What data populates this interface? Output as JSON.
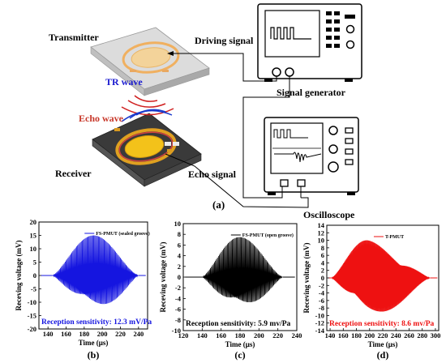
{
  "labels": {
    "transmitter": "Transmitter",
    "driving_signal": "Driving signal",
    "tr_wave": "TR wave",
    "echo_wave": "Echo wave",
    "signal_generator": "Signal generator",
    "receiver": "Receiver",
    "echo_signal": "Echo signal",
    "oscilloscope": "Oscilloscope",
    "panel_a": "(a)"
  },
  "colors": {
    "tr_wave": "#1a1ad0",
    "echo_wave": "#c8382a",
    "wave_red": "#d02020",
    "wave_blue": "#1a3acc",
    "plot_b": "#1515e0",
    "plot_c": "#000000",
    "plot_d": "#ee1111"
  },
  "chart_data": [
    {
      "type": "line",
      "panel": "(b)",
      "series": [
        {
          "name": "FS-PMUT (sealed groove)",
          "color": "#1515e0"
        }
      ],
      "xlabel": "Time (μs)",
      "ylabel": "Receving voltage (mV)",
      "xlim": [
        130,
        250
      ],
      "ylim": [
        -20,
        20
      ],
      "xticks": [
        140,
        160,
        180,
        200,
        220,
        240
      ],
      "yticks": [
        -20,
        -15,
        -10,
        -5,
        0,
        5,
        10,
        15,
        20
      ],
      "envelope": {
        "start": 145,
        "peak": 192,
        "end": 240,
        "amplitude": 15.2
      },
      "annotation": "Reception sensitivity: 12.3 mV/Pa"
    },
    {
      "type": "line",
      "panel": "(c)",
      "series": [
        {
          "name": "FS-PMUT (open groove)",
          "color": "#000000"
        }
      ],
      "xlabel": "Time (μs)",
      "ylabel": "Receving voltage (mV)",
      "xlim": [
        120,
        240
      ],
      "ylim": [
        -10,
        10
      ],
      "xticks": [
        120,
        140,
        160,
        180,
        200,
        220,
        240
      ],
      "yticks": [
        -10,
        -8,
        -6,
        -4,
        -2,
        0,
        2,
        4,
        6,
        8,
        10
      ],
      "envelope": {
        "start": 140,
        "peak": 180,
        "end": 225,
        "amplitude": 7.5
      },
      "annotation": "Reception sensitivity: 5.9 mv/Pa"
    },
    {
      "type": "line",
      "panel": "(d)",
      "series": [
        {
          "name": "T-PMUT",
          "color": "#ee1111"
        }
      ],
      "xlabel": "Time (μs)",
      "ylabel": "Receving voltage (mV)",
      "xlim": [
        135,
        305
      ],
      "ylim": [
        -14,
        14
      ],
      "xticks": [
        140,
        160,
        180,
        200,
        220,
        240,
        260,
        280,
        300
      ],
      "yticks": [
        -14,
        -12,
        -10,
        -8,
        -6,
        -4,
        -2,
        0,
        2,
        4,
        6,
        8,
        10,
        12,
        14
      ],
      "envelope": {
        "start": 142,
        "peak": 200,
        "end": 292,
        "amplitude": 10.5
      },
      "annotation": "Reception sensitivity: 8.6 mv/Pa"
    }
  ]
}
